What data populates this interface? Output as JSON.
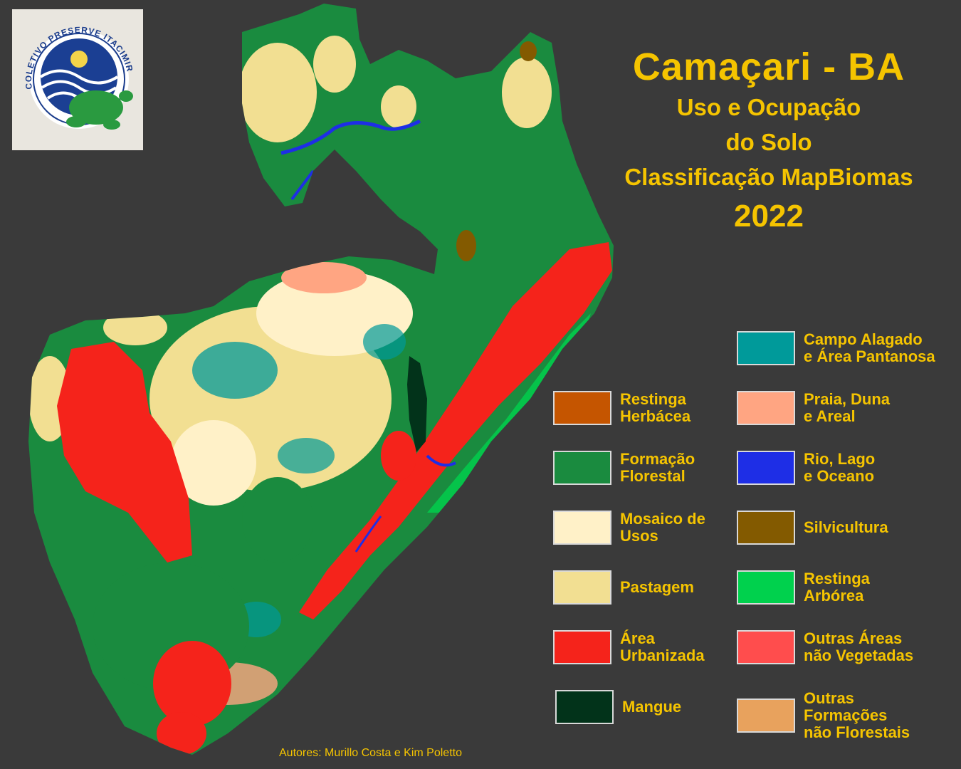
{
  "title": {
    "main": "Camaçari - BA",
    "line1": "Uso e Ocupação",
    "line2": "do Solo",
    "line3": "Classificação MapBiomas",
    "year": "2022"
  },
  "logo": {
    "text": "COLETIVO PRESERVE ITACIMIRIM",
    "icon": "turtle-wave-sun-logo"
  },
  "legend": {
    "left": [
      {
        "label": "Restinga\nHerbácea",
        "color": "#c55500"
      },
      {
        "label": "Formação\nFlorestal",
        "color": "#1a8b3f"
      },
      {
        "label": "Mosaico de\nUsos",
        "color": "#fff1c8"
      },
      {
        "label": "Pastagem",
        "color": "#f2df92"
      },
      {
        "label": "Área\nUrbanizada",
        "color": "#f5231b"
      },
      {
        "label": "Mangue",
        "color": "#02331a"
      }
    ],
    "right": [
      {
        "label": "Campo Alagado\ne Área Pantanosa",
        "color": "#009a9a"
      },
      {
        "label": "Praia, Duna\ne Areal",
        "color": "#ffa582"
      },
      {
        "label": "Rio, Lago\ne Oceano",
        "color": "#1e2ee6"
      },
      {
        "label": "Silvicultura",
        "color": "#835a00"
      },
      {
        "label": "Restinga\nArbórea",
        "color": "#00d14d"
      },
      {
        "label": "Outras Áreas\nnão Vegetadas",
        "color": "#ff4d4d"
      },
      {
        "label": "Outras\nFormações\nnão Florestais",
        "color": "#e8a25d"
      }
    ]
  },
  "authors": "Autores: Murillo Costa e Kim Poletto"
}
